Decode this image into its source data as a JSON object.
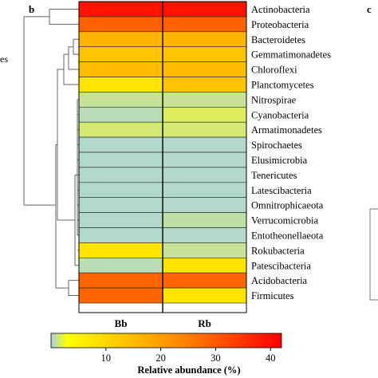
{
  "chart_data": {
    "type": "heatmap",
    "panel_label": "b",
    "right_panel_label": "c",
    "left_cut_text": "es",
    "categories": [
      "Bb",
      "Rb"
    ],
    "rows": [
      {
        "label": "Actinobacteria",
        "values": [
          39,
          39
        ]
      },
      {
        "label": "Proteobacteria",
        "values": [
          27,
          27
        ]
      },
      {
        "label": "Bacteroidetes",
        "values": [
          14,
          14
        ]
      },
      {
        "label": "Gemmatimonadetes",
        "values": [
          12,
          12
        ]
      },
      {
        "label": "Chloroflexi",
        "values": [
          13,
          13
        ]
      },
      {
        "label": "Planctomycetes",
        "values": [
          7,
          12
        ]
      },
      {
        "label": "Nitrospirae",
        "values": [
          1,
          1
        ]
      },
      {
        "label": "Cyanobacteria",
        "values": [
          0.6,
          1.8
        ]
      },
      {
        "label": "Armatimonadetes",
        "values": [
          1.5,
          1.5
        ]
      },
      {
        "label": "Spirochaetes",
        "values": [
          0.3,
          0.3
        ]
      },
      {
        "label": "Elusimicrobia",
        "values": [
          0.3,
          0.3
        ]
      },
      {
        "label": "Tenericutes",
        "values": [
          0.3,
          0.3
        ]
      },
      {
        "label": "Latescibacteria",
        "values": [
          0.3,
          0.3
        ]
      },
      {
        "label": "Omnitrophicaeota",
        "values": [
          0.3,
          0.3
        ]
      },
      {
        "label": "Verrucomicrobia",
        "values": [
          0.3,
          0.8
        ]
      },
      {
        "label": "Entotheonellaeota",
        "values": [
          0.3,
          0.3
        ]
      },
      {
        "label": "Rokubacteria",
        "values": [
          7,
          1
        ]
      },
      {
        "label": "Patescibacteria",
        "values": [
          0.6,
          7
        ]
      },
      {
        "label": "Acidobacteria",
        "values": [
          26,
          26
        ]
      },
      {
        "label": "Firmicutes",
        "values": [
          26,
          7
        ]
      }
    ],
    "colorbar": {
      "label": "Relative abundance (%)",
      "ticks": [
        10,
        20,
        30,
        40
      ],
      "range": [
        0,
        42
      ],
      "colors": [
        "#a9d3e3",
        "#ffff00",
        "#ff8000",
        "#ff0000"
      ]
    }
  }
}
